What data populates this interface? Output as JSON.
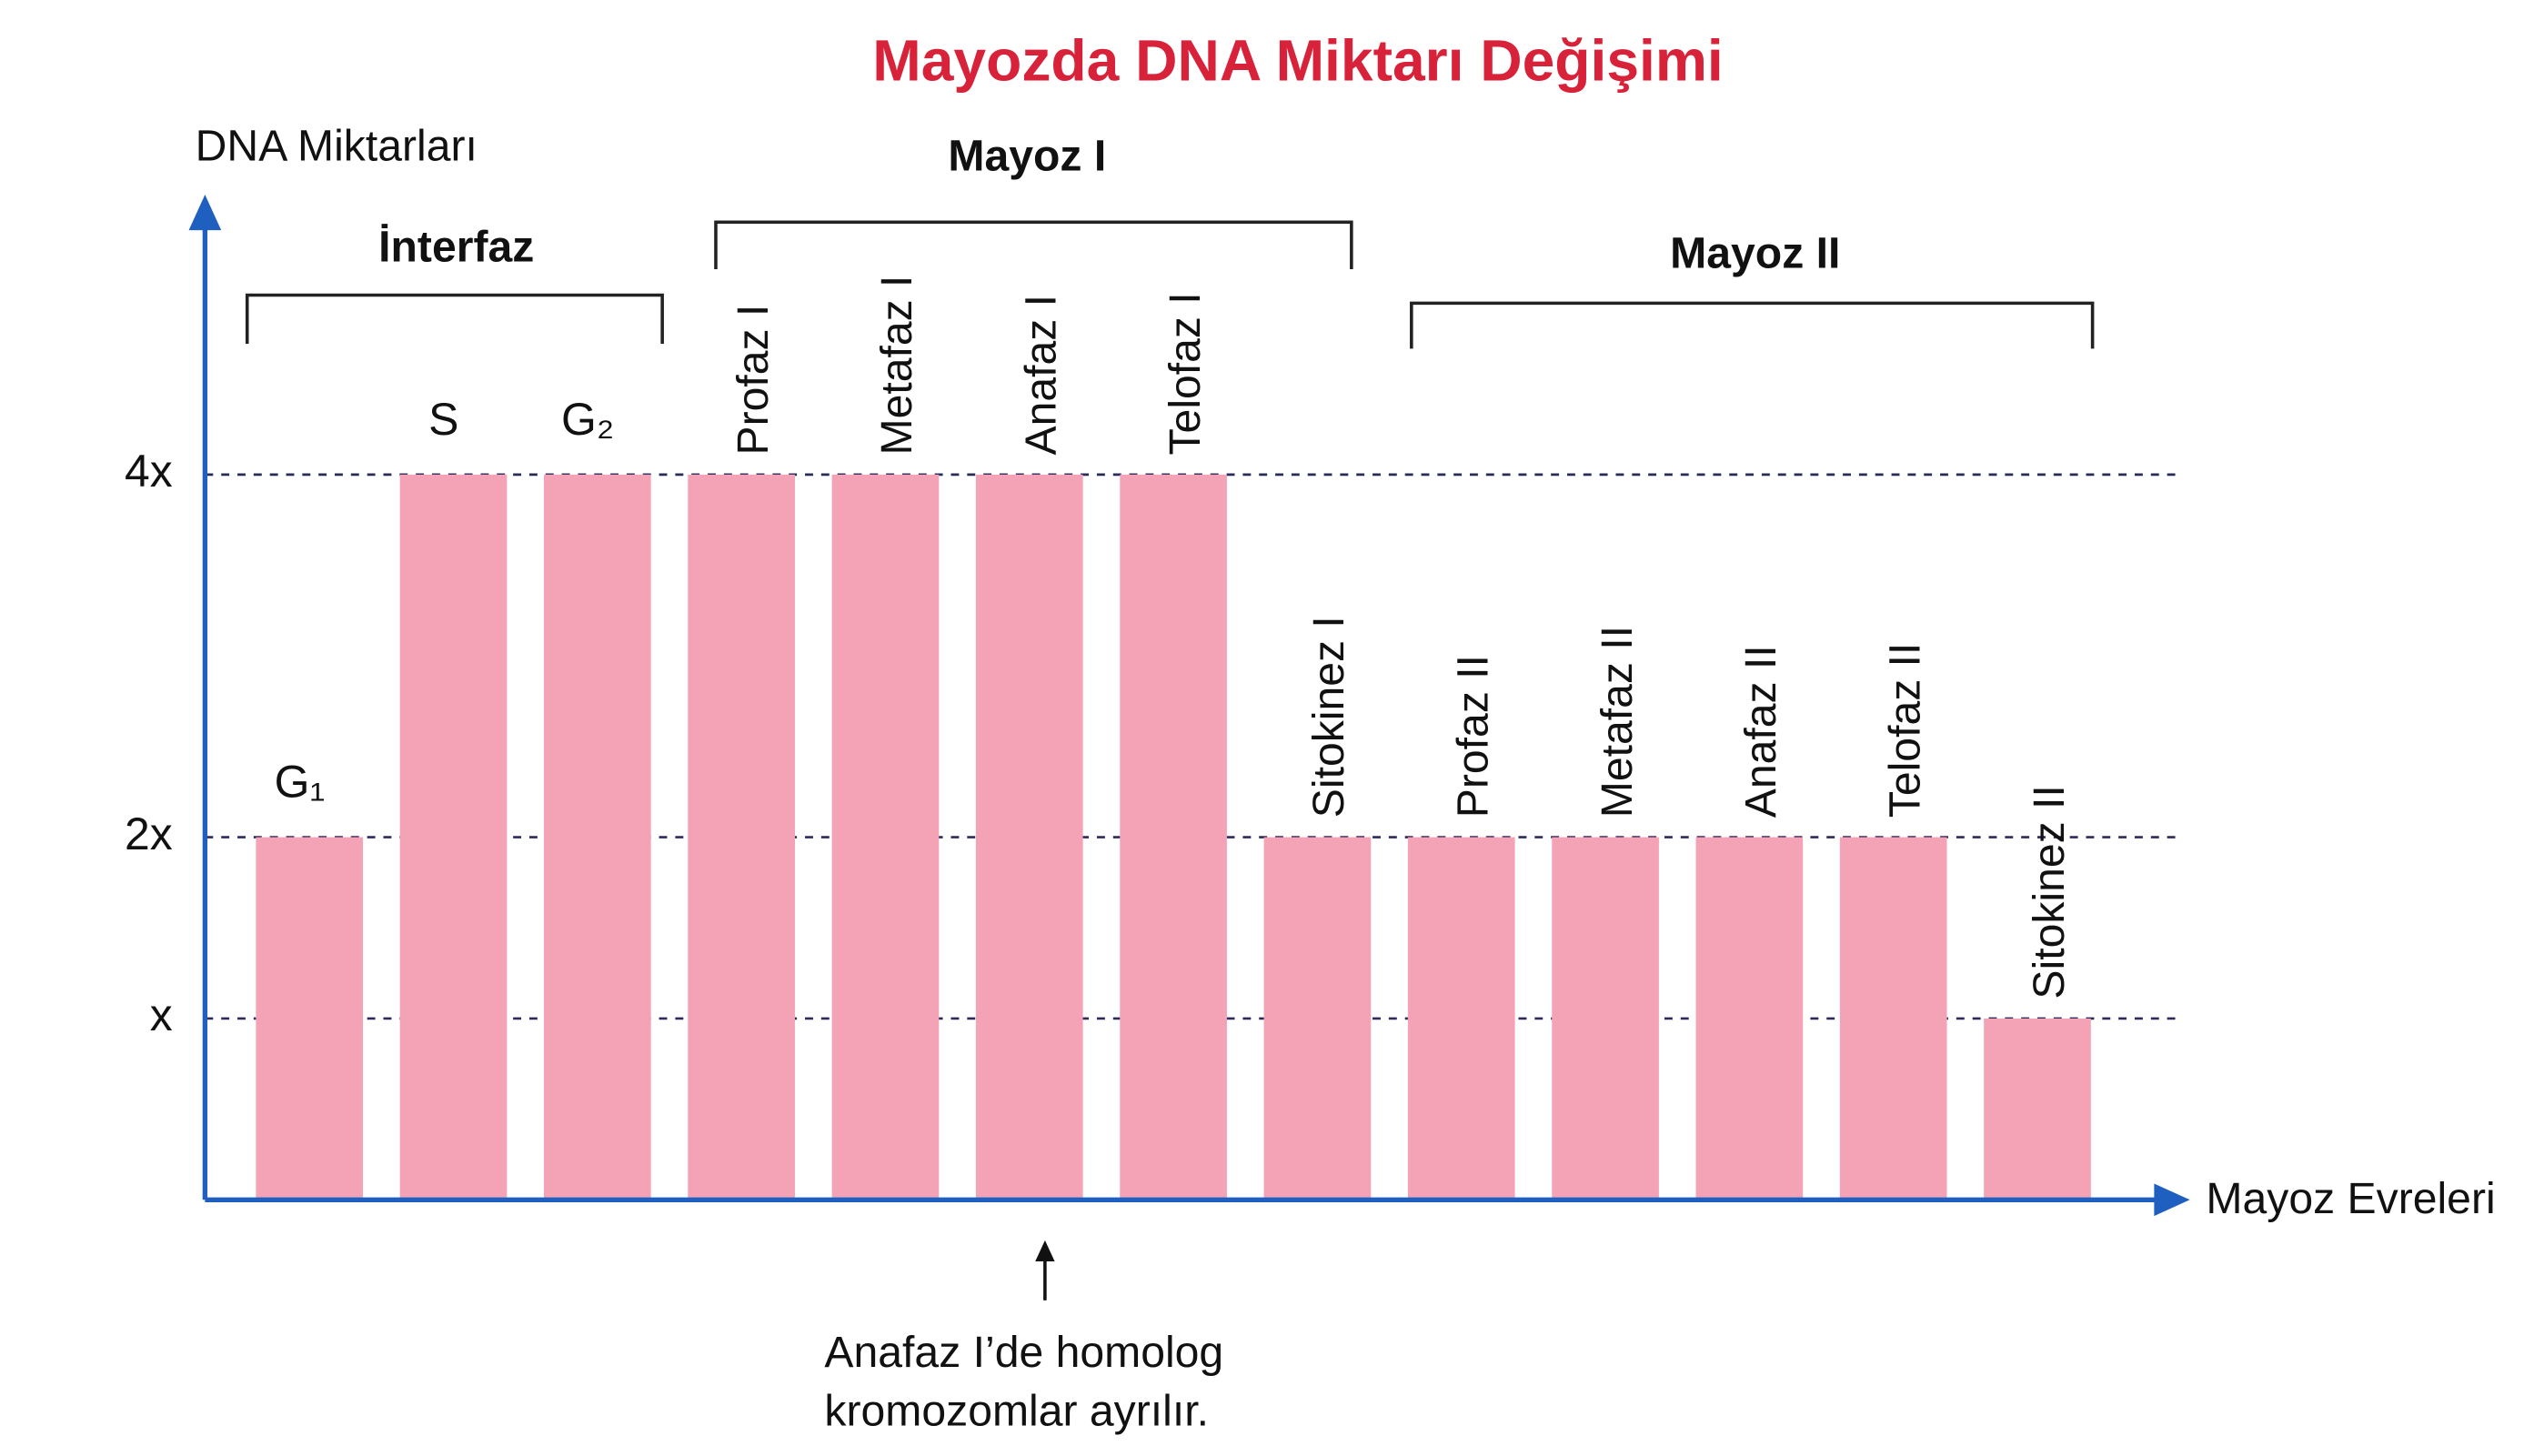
{
  "chart_data": {
    "type": "bar",
    "title": "Mayozda DNA Miktarı Değişimi",
    "y_label": "DNA Miktarları",
    "x_label": "Mayoz Evreleri",
    "categories": [
      "G₁",
      "S",
      "G₂",
      "Profaz I",
      "Metafaz I",
      "Anafaz I",
      "Telofaz I",
      "Sitokinez I",
      "Profaz II",
      "Metafaz II",
      "Anafaz II",
      "Telofaz II",
      "Sitokinez II"
    ],
    "values": [
      2,
      4,
      4,
      4,
      4,
      4,
      4,
      2,
      2,
      2,
      2,
      2,
      1
    ],
    "color": "#f4a3b6",
    "ylim": [
      0,
      5.5
    ],
    "yticks": [
      {
        "value": 1,
        "label": "x"
      },
      {
        "value": 2,
        "label": "2x"
      },
      {
        "value": 4,
        "label": "4x"
      }
    ],
    "grid": true,
    "groups": [
      "İnterfaz",
      "Mayoz I",
      "Mayoz II"
    ],
    "annotation": [
      "Anafaz I’de homolog",
      "kromozomlar ayrılır."
    ]
  }
}
